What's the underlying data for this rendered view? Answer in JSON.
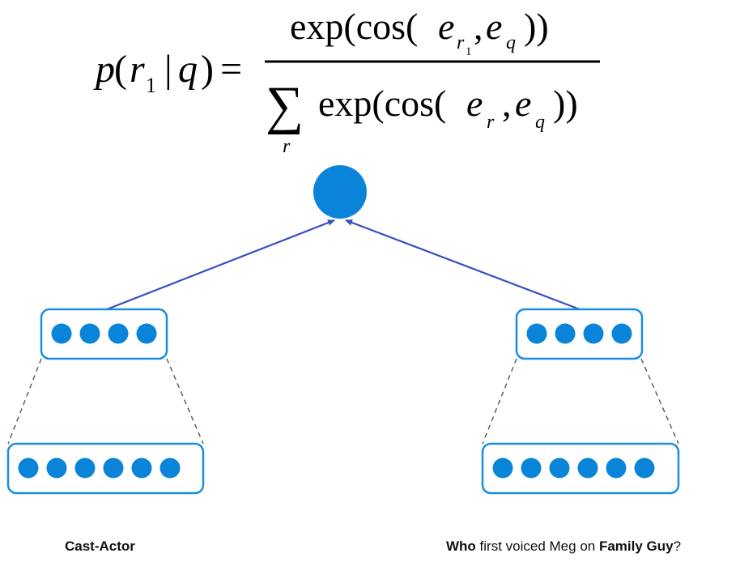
{
  "formula": {
    "lhs_p": "p",
    "lhs_open": "(",
    "lhs_r": "r",
    "lhs_r_sub": "1",
    "lhs_bar": "|",
    "lhs_q": "q",
    "lhs_close": ")",
    "equals": "=",
    "num_prefix": "exp(cos(",
    "num_e1": "e",
    "num_e1_sub": "r",
    "num_e1_subsub": "1",
    "num_comma": ",",
    "num_e2": "e",
    "num_e2_sub": "q",
    "num_suffix": "))",
    "sum_symbol": "∑",
    "sum_index": "r",
    "den_prefix": "exp(cos(",
    "den_e1": "e",
    "den_e1_sub": "r",
    "den_comma": ",",
    "den_e2": "e",
    "den_e2_sub": "q",
    "den_suffix": "))"
  },
  "captions": {
    "left": "Cast-Actor",
    "right_parts": [
      {
        "text": "Who",
        "bold": true
      },
      {
        "text": " first voiced Meg on ",
        "bold": false
      },
      {
        "text": "Family Guy",
        "bold": true
      },
      {
        "text": "?",
        "bold": false
      }
    ]
  },
  "colors": {
    "node_fill": "#0a84d8",
    "box_stroke": "#1a8fe0",
    "arrow": "#3a4fc0",
    "dashed": "#555555"
  }
}
